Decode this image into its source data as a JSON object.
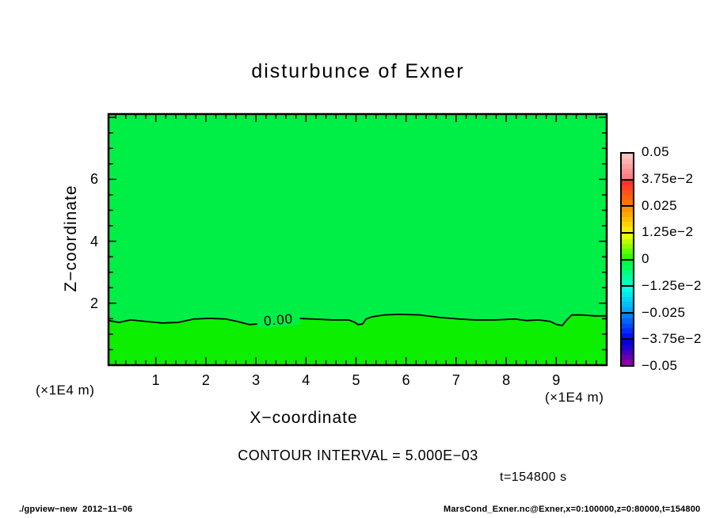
{
  "title": "disturbunce of Exner",
  "axes": {
    "x_label": "X−coordinate",
    "z_label": "Z−coordinate",
    "x_unit": "(×1E4 m)",
    "x_ticks": [
      1,
      2,
      3,
      4,
      5,
      6,
      7,
      8,
      9
    ],
    "z_ticks": [
      6,
      4,
      2
    ]
  },
  "annotations": {
    "contour_interval": "CONTOUR INTERVAL = 5.000E−03",
    "time": "t=154800 s",
    "contour_label": "0.00"
  },
  "footer": {
    "left": "./gpview−new  2012−11−06",
    "right": "MarsCond_Exner.nc@Exner,x=0:100000,z=0:80000,t=154800"
  },
  "colorbar": {
    "labels": [
      "0.05",
      "3.75e−2",
      "0.025",
      "1.25e−2",
      "0",
      "−1.25e−2",
      "−0.025",
      "−3.75e−2",
      "−0.05"
    ],
    "values": [
      0.05,
      0.0375,
      0.025,
      0.0125,
      0,
      -0.0125,
      -0.025,
      -0.0375,
      -0.05
    ],
    "block_colors": [
      [
        "#ffc0c0",
        "#ff8080"
      ],
      [
        "#ff3030",
        "#ff7300"
      ],
      [
        "#ff9400",
        "#ffe800"
      ],
      [
        "#eaff00",
        "#30ff00"
      ],
      [
        "#00ff40",
        "#00ffc0"
      ],
      [
        "#00ffe8",
        "#00aaff"
      ],
      [
        "#0080ff",
        "#0010ff"
      ],
      [
        "#0000e0",
        "#8800a0"
      ]
    ]
  },
  "plot_colors": {
    "above_contour": "#00ef46",
    "below_contour": "#0cef00"
  },
  "chart_data": {
    "type": "heatmap",
    "title": "disturbunce of Exner",
    "xlabel": "X−coordinate (×1E4 m)",
    "ylabel": "Z−coordinate (×1E4 m)",
    "xlim": [
      0,
      10
    ],
    "ylim": [
      0,
      8.1
    ],
    "contour_interval": 0.005,
    "value_range_shown": [
      -0.05,
      0.05
    ],
    "field_summary": "Exner disturbance is ~0 everywhere; slightly negative above z≈1.5e4 m, slightly positive below; single labeled contour 0.00 at z≈1.5",
    "zero_contour": {
      "label": "0.00",
      "label_position_x": 3.45,
      "points": [
        [
          0.06,
          1.44
        ],
        [
          0.26,
          1.38
        ],
        [
          0.5,
          1.46
        ],
        [
          0.81,
          1.41
        ],
        [
          1.13,
          1.36
        ],
        [
          1.45,
          1.38
        ],
        [
          1.76,
          1.49
        ],
        [
          2.08,
          1.51
        ],
        [
          2.4,
          1.49
        ],
        [
          2.63,
          1.41
        ],
        [
          2.87,
          1.31
        ],
        [
          3.03,
          1.33
        ],
        [
          3.45,
          1.43
        ],
        [
          3.81,
          1.51
        ],
        [
          4.14,
          1.49
        ],
        [
          4.53,
          1.46
        ],
        [
          4.85,
          1.46
        ],
        [
          4.98,
          1.38
        ],
        [
          5.04,
          1.31
        ],
        [
          5.13,
          1.33
        ],
        [
          5.2,
          1.49
        ],
        [
          5.32,
          1.56
        ],
        [
          5.56,
          1.62
        ],
        [
          5.88,
          1.64
        ],
        [
          6.27,
          1.62
        ],
        [
          6.67,
          1.54
        ],
        [
          7.06,
          1.49
        ],
        [
          7.38,
          1.46
        ],
        [
          7.78,
          1.46
        ],
        [
          8.17,
          1.49
        ],
        [
          8.41,
          1.44
        ],
        [
          8.65,
          1.46
        ],
        [
          8.88,
          1.41
        ],
        [
          9.01,
          1.31
        ],
        [
          9.12,
          1.28
        ],
        [
          9.2,
          1.44
        ],
        [
          9.31,
          1.62
        ],
        [
          9.52,
          1.62
        ],
        [
          9.76,
          1.59
        ],
        [
          10.0,
          1.59
        ]
      ]
    }
  }
}
